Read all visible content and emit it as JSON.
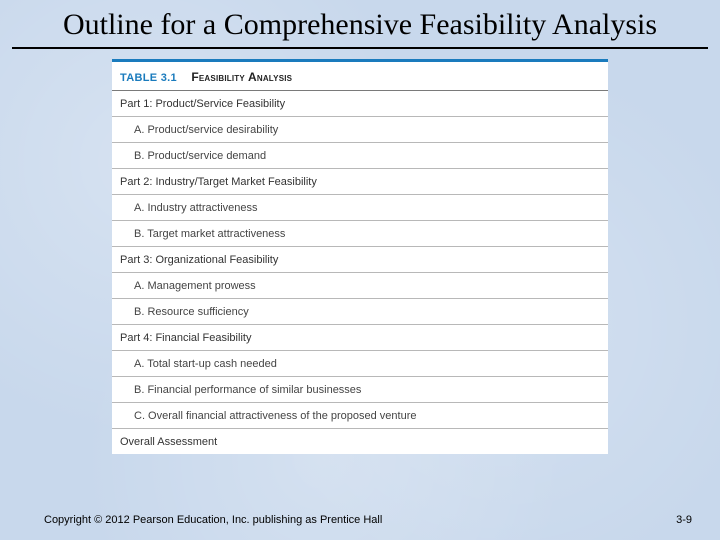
{
  "title": "Outline for a Comprehensive Feasibility Analysis",
  "table": {
    "label": "TABLE 3.1",
    "name": "Feasibility Analysis",
    "parts": [
      {
        "heading": "Part 1: Product/Service Feasibility",
        "items": [
          "A.  Product/service desirability",
          "B.  Product/service demand"
        ]
      },
      {
        "heading": "Part 2: Industry/Target Market Feasibility",
        "items": [
          "A.  Industry attractiveness",
          "B.  Target market attractiveness"
        ]
      },
      {
        "heading": "Part 3: Organizational Feasibility",
        "items": [
          "A.  Management prowess",
          "B.  Resource sufficiency"
        ]
      },
      {
        "heading": "Part 4: Financial Feasibility",
        "items": [
          "A.  Total start-up cash needed",
          "B.  Financial performance of similar businesses",
          "C.  Overall financial attractiveness of the proposed venture"
        ]
      }
    ],
    "final": "Overall Assessment"
  },
  "copyright": "Copyright © 2012 Pearson Education, Inc. publishing as Prentice Hall",
  "page": "3-9",
  "colors": {
    "background": "#c8d8ec",
    "accent": "#1a7bbd",
    "rule": "#b8b8b8",
    "text": "#333333"
  },
  "typography": {
    "title_font": "Times New Roman",
    "title_size_pt": 22,
    "body_font": "Arial",
    "body_size_pt": 8
  }
}
